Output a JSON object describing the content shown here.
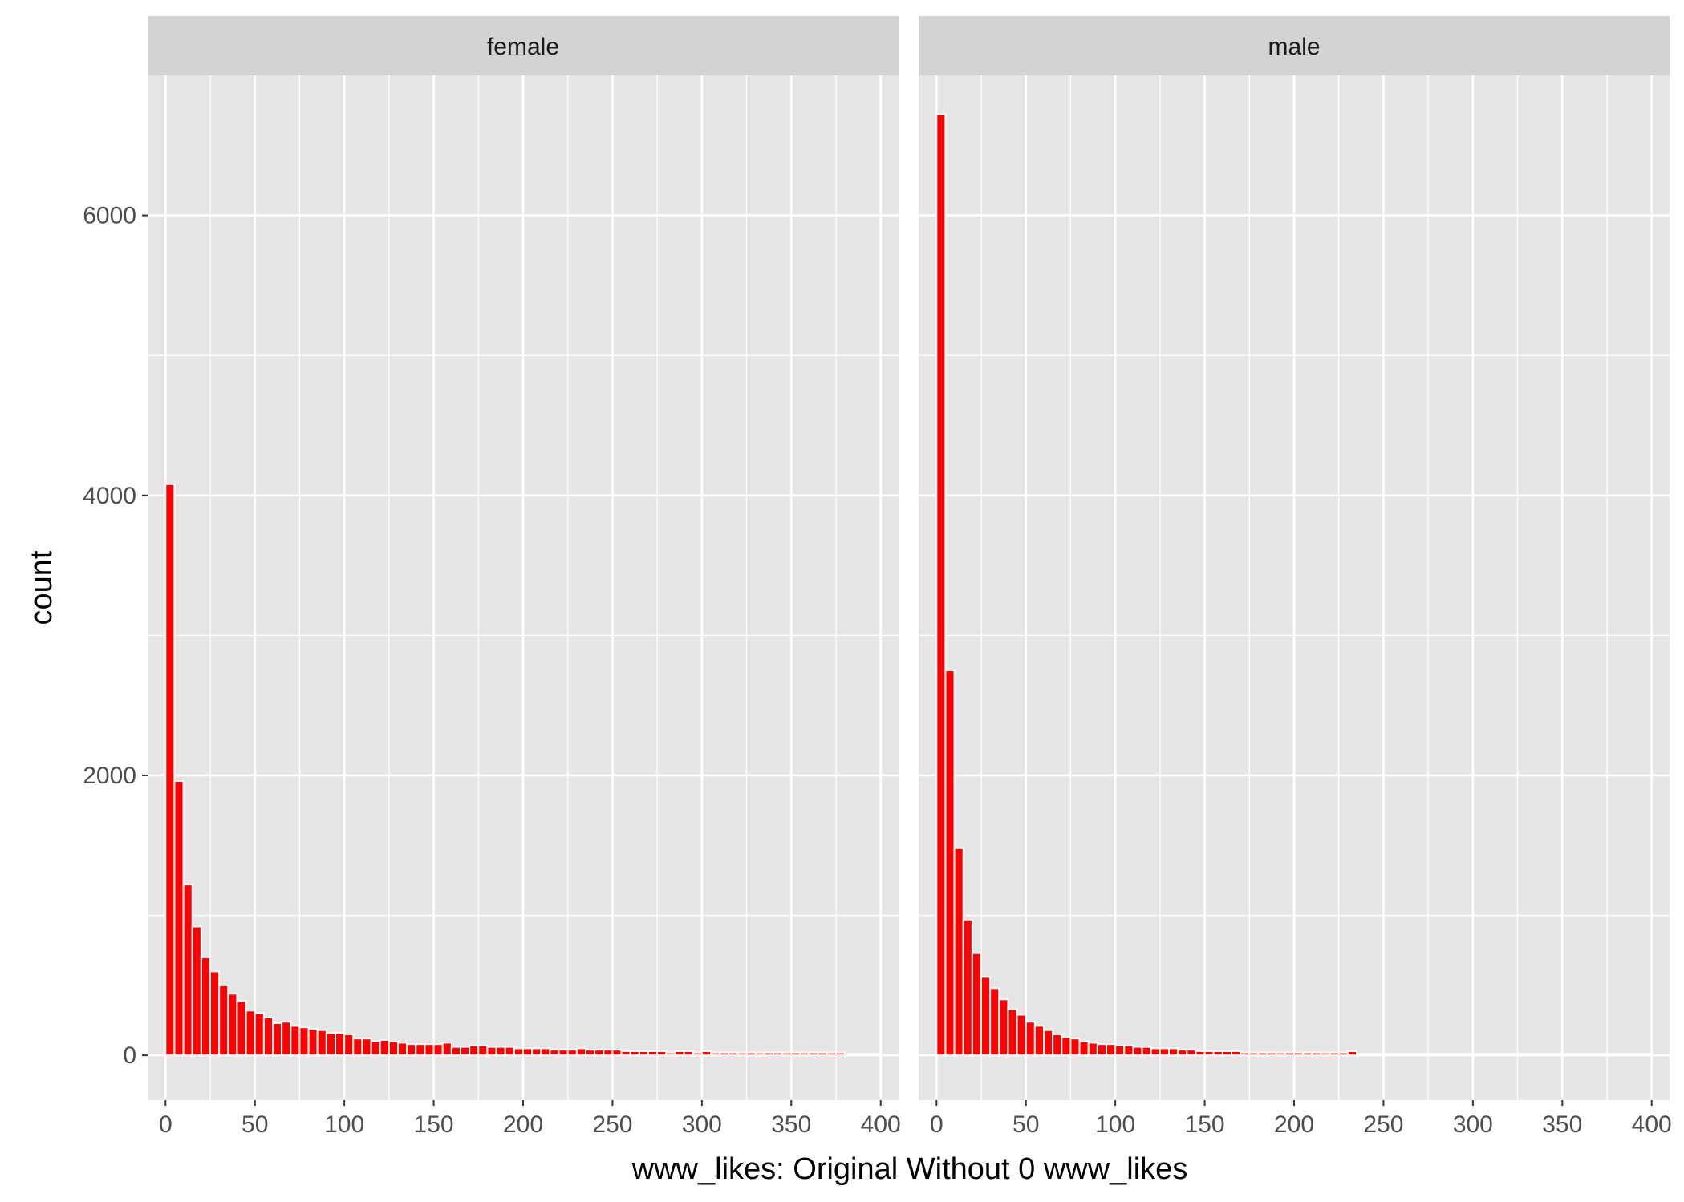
{
  "chart_data": {
    "type": "bar",
    "subtype": "faceted-histogram",
    "xlabel": "www_likes: Original Without 0 www_likes",
    "ylabel": "count",
    "xlim": [
      -10,
      410
    ],
    "ylim": [
      -320,
      7000
    ],
    "x_ticks": [
      0,
      50,
      100,
      150,
      200,
      250,
      300,
      350,
      400
    ],
    "y_ticks": [
      0,
      2000,
      4000,
      6000
    ],
    "bin_width": 5,
    "bar_fill": "#ff0000",
    "bar_outline": "#ffffff",
    "panel_background": "#e5e5e5",
    "strip_background": "#d3d3d3",
    "grid": true,
    "facets": [
      {
        "label": "female",
        "x": [
          2.5,
          7.5,
          12.5,
          17.5,
          22.5,
          27.5,
          32.5,
          37.5,
          42.5,
          47.5,
          52.5,
          57.5,
          62.5,
          67.5,
          72.5,
          77.5,
          82.5,
          87.5,
          92.5,
          97.5,
          102.5,
          107.5,
          112.5,
          117.5,
          122.5,
          127.5,
          132.5,
          137.5,
          142.5,
          147.5,
          152.5,
          157.5,
          162.5,
          167.5,
          172.5,
          177.5,
          182.5,
          187.5,
          192.5,
          197.5,
          202.5,
          207.5,
          212.5,
          217.5,
          222.5,
          227.5,
          232.5,
          237.5,
          242.5,
          247.5,
          252.5,
          257.5,
          262.5,
          267.5,
          272.5,
          277.5,
          282.5,
          287.5,
          292.5,
          297.5,
          302.5,
          307.5,
          312.5,
          317.5,
          322.5,
          327.5,
          332.5,
          337.5,
          342.5,
          347.5,
          352.5,
          357.5,
          362.5,
          367.5,
          372.5,
          377.5,
          382.5,
          387.5,
          392.5,
          397.5
        ],
        "values": [
          4080,
          1960,
          1220,
          920,
          700,
          600,
          500,
          440,
          390,
          320,
          300,
          270,
          230,
          240,
          210,
          200,
          190,
          180,
          160,
          160,
          150,
          120,
          120,
          100,
          110,
          100,
          90,
          80,
          80,
          80,
          80,
          90,
          60,
          60,
          70,
          70,
          60,
          60,
          60,
          50,
          50,
          50,
          50,
          40,
          40,
          40,
          50,
          40,
          40,
          40,
          40,
          30,
          30,
          30,
          30,
          30,
          20,
          30,
          30,
          20,
          30,
          20,
          20,
          20,
          20,
          20,
          20,
          20,
          20,
          20,
          20,
          20,
          20,
          20,
          20,
          20,
          10,
          10,
          10,
          10
        ]
      },
      {
        "label": "male",
        "x": [
          2.5,
          7.5,
          12.5,
          17.5,
          22.5,
          27.5,
          32.5,
          37.5,
          42.5,
          47.5,
          52.5,
          57.5,
          62.5,
          67.5,
          72.5,
          77.5,
          82.5,
          87.5,
          92.5,
          97.5,
          102.5,
          107.5,
          112.5,
          117.5,
          122.5,
          127.5,
          132.5,
          137.5,
          142.5,
          147.5,
          152.5,
          157.5,
          162.5,
          167.5,
          172.5,
          177.5,
          182.5,
          187.5,
          192.5,
          197.5,
          202.5,
          207.5,
          212.5,
          217.5,
          222.5,
          227.5,
          232.5,
          237.5,
          242.5,
          247.5,
          252.5,
          257.5,
          262.5,
          267.5,
          272.5,
          277.5,
          282.5,
          287.5,
          292.5,
          297.5,
          302.5,
          307.5,
          312.5,
          317.5,
          322.5,
          327.5,
          332.5,
          337.5,
          342.5,
          347.5,
          352.5,
          357.5,
          362.5,
          367.5,
          372.5,
          377.5,
          382.5,
          387.5,
          392.5,
          397.5
        ],
        "values": [
          6720,
          2750,
          1480,
          970,
          730,
          560,
          480,
          400,
          330,
          290,
          240,
          210,
          180,
          150,
          130,
          120,
          100,
          90,
          80,
          80,
          70,
          70,
          60,
          60,
          50,
          50,
          50,
          40,
          40,
          30,
          30,
          30,
          30,
          30,
          20,
          20,
          20,
          20,
          20,
          20,
          20,
          20,
          20,
          20,
          20,
          20,
          30,
          10,
          10,
          10,
          10,
          10,
          10,
          10,
          10,
          10,
          10,
          10,
          10,
          10,
          10,
          10,
          10,
          10,
          10,
          10,
          10,
          10,
          10,
          10,
          10,
          10,
          10,
          10,
          10,
          10,
          10,
          10,
          10,
          10
        ]
      }
    ]
  }
}
